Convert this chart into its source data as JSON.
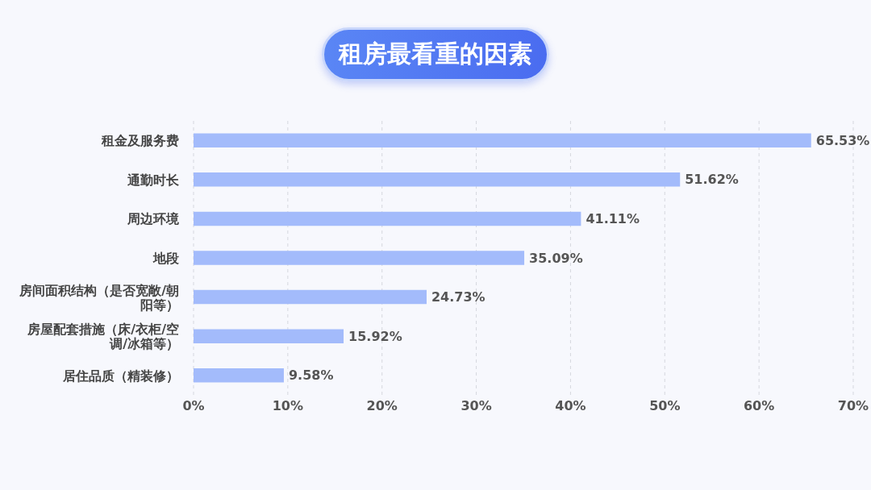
{
  "chart_data": {
    "type": "bar",
    "orientation": "horizontal",
    "title": "租房最看重的因素",
    "categories": [
      "租金及服务费",
      "通勤时长",
      "周边环境",
      "地段",
      "房间面积结构（是否宽敞/朝阳等）",
      "房屋配套措施（床/衣柜/空调/冰箱等）",
      "居住品质（精装修）"
    ],
    "values": [
      65.53,
      51.62,
      41.11,
      35.09,
      24.73,
      15.92,
      9.58
    ],
    "value_labels": [
      "65.53%",
      "51.62%",
      "41.11%",
      "35.09%",
      "24.73%",
      "15.92%",
      "9.58%"
    ],
    "color": "#a3bbfb",
    "xlim": [
      0,
      70
    ],
    "xticks": [
      {
        "value": 0,
        "label": "0%"
      },
      {
        "value": 10,
        "label": "10%"
      },
      {
        "value": 20,
        "label": "20%"
      },
      {
        "value": 30,
        "label": "30%"
      },
      {
        "value": 40,
        "label": "40%"
      },
      {
        "value": 50,
        "label": "50%"
      },
      {
        "value": 60,
        "label": "60%"
      },
      {
        "value": 70,
        "label": "70%"
      }
    ],
    "grid": "x",
    "legend": false
  }
}
